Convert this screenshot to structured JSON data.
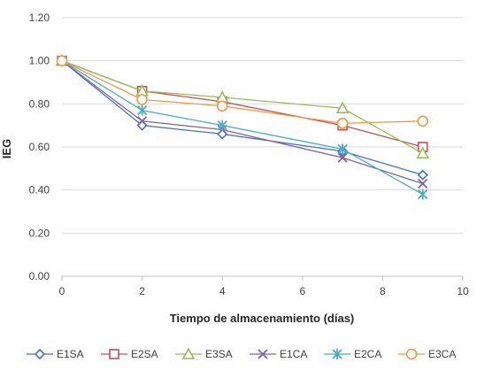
{
  "chart_data": {
    "type": "line",
    "title": "",
    "xlabel": "Tiempo de almacenamiento (días)",
    "ylabel": "IEG",
    "xlim": [
      0,
      10
    ],
    "ylim": [
      0,
      1.2
    ],
    "x_ticks": [
      "0",
      "2",
      "4",
      "6",
      "8",
      "10"
    ],
    "y_ticks": [
      "0.00",
      "0.20",
      "0.40",
      "0.60",
      "0.80",
      "1.00",
      "1.20"
    ],
    "x": [
      0,
      2,
      4,
      7,
      9
    ],
    "grid": true,
    "legend_position": "bottom",
    "series": [
      {
        "name": "E1SA",
        "marker": "diamond",
        "color": "#4472C4",
        "values": [
          1.0,
          0.7,
          0.66,
          0.58,
          0.47
        ]
      },
      {
        "name": "E2SA",
        "marker": "square",
        "color": "#C0504D",
        "values": [
          1.0,
          0.86,
          0.81,
          0.7,
          0.6
        ]
      },
      {
        "name": "E3SA",
        "marker": "triangle",
        "color": "#9BBB59",
        "values": [
          1.0,
          0.86,
          0.83,
          0.78,
          0.57
        ]
      },
      {
        "name": "E1CA",
        "marker": "x",
        "color": "#8064A2",
        "values": [
          1.0,
          0.72,
          0.68,
          0.55,
          0.43
        ]
      },
      {
        "name": "E2CA",
        "marker": "star",
        "color": "#4BACC6",
        "values": [
          1.0,
          0.77,
          0.7,
          0.59,
          0.38
        ]
      },
      {
        "name": "E3CA",
        "marker": "circle",
        "color": "#F79646",
        "values": [
          1.0,
          0.82,
          0.79,
          0.71,
          0.72
        ]
      }
    ]
  }
}
